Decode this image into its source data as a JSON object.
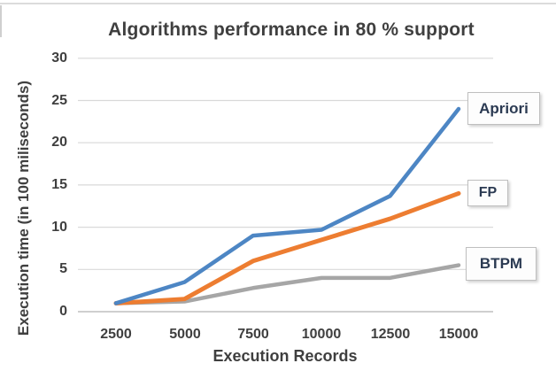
{
  "chart_data": {
    "type": "line",
    "title": "Algorithms performance in 80 % support",
    "xlabel": "Execution Records",
    "ylabel": "Execution time (in 100 miliseconds)",
    "categories": [
      2500,
      5000,
      7500,
      10000,
      12500,
      15000
    ],
    "x_tick_labels": [
      "2500",
      "5000",
      "7500",
      "10000",
      "12500",
      "15000"
    ],
    "y_ticks": [
      "30",
      "25",
      "20",
      "15",
      "10",
      "5",
      "0"
    ],
    "ylim": [
      0,
      30
    ],
    "y_gridline_step": 5,
    "grid": "horizontal",
    "legend_position": "right-floating-boxes",
    "series": [
      {
        "name": "Apriori",
        "color": "#4d86c4",
        "values": [
          1,
          3.5,
          9,
          9.7,
          13.7,
          24
        ]
      },
      {
        "name": "FP",
        "color": "#ed7d31",
        "values": [
          1,
          1.5,
          6,
          8.5,
          11,
          14
        ]
      },
      {
        "name": "BTPM",
        "color": "#a6a6a6",
        "values": [
          1,
          1.2,
          2.8,
          4,
          4,
          5.5
        ]
      }
    ],
    "colors": {
      "grid": "#d9d9d9",
      "axis": "#bfbfbf",
      "text": "#3f3f3f",
      "legend_text": "#2b3a52",
      "background": "#ffffff"
    }
  }
}
